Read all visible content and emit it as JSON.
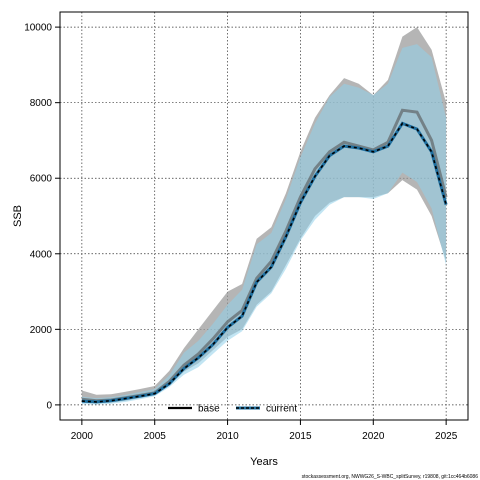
{
  "chart_data": {
    "type": "line",
    "xlabel": "Years",
    "ylabel": "SSB",
    "xlim": [
      1998.5,
      2026.5
    ],
    "ylim": [
      -400,
      10400
    ],
    "x_ticks": [
      2000,
      2005,
      2010,
      2015,
      2020,
      2025
    ],
    "y_ticks": [
      0,
      2000,
      4000,
      6000,
      8000,
      10000
    ],
    "grid": true,
    "x": [
      2000,
      2001,
      2002,
      2003,
      2004,
      2005,
      2006,
      2007,
      2008,
      2009,
      2010,
      2011,
      2012,
      2013,
      2014,
      2015,
      2016,
      2017,
      2018,
      2019,
      2020,
      2021,
      2022,
      2023,
      2024,
      2025
    ],
    "series": [
      {
        "name": "base",
        "color": "#000000",
        "band_color": "#999999",
        "values": [
          150,
          110,
          130,
          190,
          250,
          320,
          620,
          1050,
          1350,
          1750,
          2200,
          2500,
          3350,
          3800,
          4600,
          5500,
          6250,
          6700,
          6950,
          6850,
          6750,
          6950,
          7800,
          7750,
          7000,
          5500
        ],
        "lower": [
          60,
          40,
          60,
          110,
          180,
          260,
          530,
          880,
          1100,
          1450,
          1800,
          2000,
          2650,
          3000,
          3700,
          4400,
          5000,
          5350,
          5500,
          5500,
          5500,
          5600,
          5950,
          5700,
          5000,
          3800
        ],
        "upper": [
          380,
          270,
          280,
          350,
          420,
          500,
          900,
          1500,
          2000,
          2500,
          3000,
          3200,
          4400,
          4700,
          5600,
          6700,
          7600,
          8200,
          8650,
          8500,
          8200,
          8600,
          9750,
          10000,
          9400,
          8000
        ]
      },
      {
        "name": "current",
        "color": "#1f6f9f",
        "band_color": "#8fd0ea",
        "values": [
          100,
          80,
          110,
          170,
          230,
          300,
          560,
          960,
          1250,
          1600,
          2050,
          2350,
          3250,
          3650,
          4450,
          5350,
          6050,
          6600,
          6850,
          6800,
          6700,
          6850,
          7450,
          7300,
          6700,
          5300
        ],
        "lower": [
          20,
          10,
          30,
          80,
          150,
          230,
          470,
          800,
          1000,
          1350,
          1700,
          1950,
          2600,
          2950,
          3600,
          4350,
          4900,
          5300,
          5500,
          5500,
          5450,
          5600,
          6150,
          5900,
          5200,
          3700
        ],
        "upper": [
          220,
          180,
          200,
          270,
          340,
          420,
          780,
          1380,
          1700,
          2150,
          2650,
          3050,
          4250,
          4550,
          5450,
          6550,
          7450,
          8150,
          8500,
          8400,
          8200,
          8500,
          9450,
          9550,
          9200,
          7600
        ]
      }
    ],
    "legend": {
      "position": "bottom-center",
      "entries": [
        "base",
        "current"
      ]
    },
    "footer": "stockassessment.org, NWWG26_S-WBC_splitSurvey, r19808, git:1cc464b6086"
  }
}
